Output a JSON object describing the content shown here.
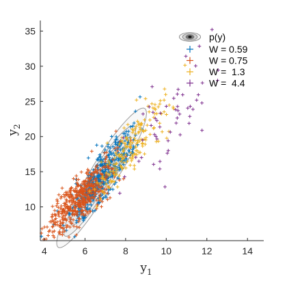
{
  "chart_data": {
    "type": "scatter",
    "title": "",
    "xlabel": "y",
    "xlabel_sub": "1",
    "ylabel": "y",
    "ylabel_sub": "2",
    "xlim": [
      3.8,
      14.8
    ],
    "ylim": [
      5.2,
      36.5
    ],
    "xticks": [
      4,
      6,
      8,
      10,
      12,
      14
    ],
    "yticks": [
      10,
      15,
      20,
      25,
      30,
      35
    ],
    "grid": false,
    "legend_placement": "top-right",
    "density_label": "p(y)",
    "density_center": [
      6.35,
      12.0
    ],
    "series": [
      {
        "name": "W = 0.59",
        "color": "#0072BD",
        "count": 430,
        "mean": [
          6.85,
          14.2
        ],
        "sd": [
          0.75,
          3.2
        ],
        "corr": 0.85
      },
      {
        "name": "W = 0.75",
        "color": "#D95319",
        "count": 480,
        "mean": [
          5.75,
          11.2
        ],
        "sd": [
          0.8,
          2.7
        ],
        "corr": 0.8
      },
      {
        "name": "W =  1.3",
        "color": "#EDB120",
        "count": 180,
        "mean": [
          8.3,
          19.0
        ],
        "sd": [
          0.85,
          3.6
        ],
        "corr": 0.85
      },
      {
        "name": "W =  4.4",
        "color": "#7E2F8E",
        "count": 55,
        "mean": [
          10.3,
          22.5
        ],
        "sd": [
          1.3,
          5.0
        ],
        "corr": 0.75
      }
    ]
  }
}
